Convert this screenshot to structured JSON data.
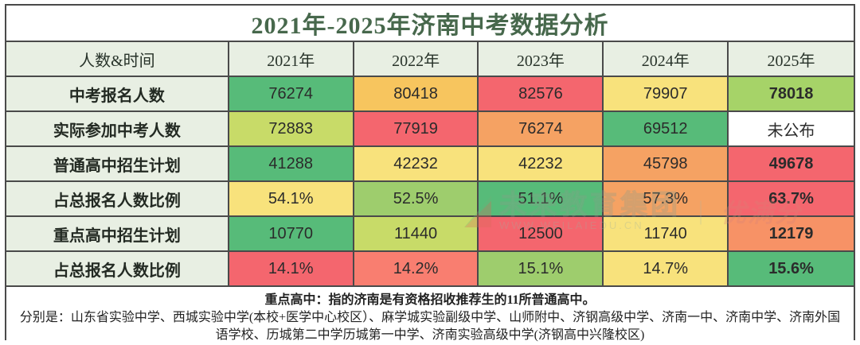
{
  "title": "2021年-2025年济南中考数据分析",
  "colors": {
    "green": "#57bb79",
    "lightGreen": "#9ecd6d",
    "yellowGreen": "#c8db68",
    "paleGreen": "#a6d368",
    "yellow": "#f8e27c",
    "amber": "#f7c55e",
    "orange": "#f5a263",
    "salmonOrange": "#f79266",
    "salmon": "#f97e70",
    "red": "#f4666e",
    "white": "#ffffff",
    "headerBg": "#e8efe3",
    "titleText": "#47684c",
    "border": "#4a4a4a"
  },
  "table": {
    "header": [
      "人数&时间",
      "2021年",
      "2022年",
      "2023年",
      "2024年",
      "2025年"
    ],
    "rows": [
      {
        "label": "中考报名人数",
        "cells": [
          {
            "v": "76274",
            "c": "green"
          },
          {
            "v": "80418",
            "c": "amber"
          },
          {
            "v": "82576",
            "c": "red"
          },
          {
            "v": "79907",
            "c": "yellow"
          },
          {
            "v": "78018",
            "c": "paleGreen",
            "b": true
          }
        ]
      },
      {
        "label": "实际参加中考人数",
        "cells": [
          {
            "v": "72883",
            "c": "yellowGreen"
          },
          {
            "v": "77919",
            "c": "red"
          },
          {
            "v": "76274",
            "c": "orange"
          },
          {
            "v": "69512",
            "c": "green"
          },
          {
            "v": "未公布",
            "c": "white",
            "cn": true
          }
        ]
      },
      {
        "label": "普通高中招生计划",
        "cells": [
          {
            "v": "41288",
            "c": "green"
          },
          {
            "v": "42232",
            "c": "yellow"
          },
          {
            "v": "42232",
            "c": "yellow"
          },
          {
            "v": "45798",
            "c": "orange"
          },
          {
            "v": "49678",
            "c": "red",
            "b": true
          }
        ]
      },
      {
        "label": "占总报名人数比例",
        "cells": [
          {
            "v": "54.1%",
            "c": "yellow"
          },
          {
            "v": "52.5%",
            "c": "lightGreen"
          },
          {
            "v": "51.1%",
            "c": "green"
          },
          {
            "v": "57.3%",
            "c": "orange"
          },
          {
            "v": "63.7%",
            "c": "red",
            "b": true
          }
        ]
      },
      {
        "label": "重点高中招生计划",
        "cells": [
          {
            "v": "10770",
            "c": "green"
          },
          {
            "v": "11440",
            "c": "yellowGreen"
          },
          {
            "v": "12500",
            "c": "red"
          },
          {
            "v": "11740",
            "c": "yellow"
          },
          {
            "v": "12179",
            "c": "salmonOrange",
            "b": true
          }
        ]
      },
      {
        "label": "占总报名人数比例",
        "cells": [
          {
            "v": "14.1%",
            "c": "red"
          },
          {
            "v": "14.2%",
            "c": "salmon"
          },
          {
            "v": "15.1%",
            "c": "lightGreen"
          },
          {
            "v": "14.7%",
            "c": "yellow"
          },
          {
            "v": "15.6%",
            "c": "green",
            "b": true
          }
        ]
      }
    ]
  },
  "notes": {
    "line1": "重点高中：指的济南是有资格招收推荐生的11所普通高中。",
    "line2": "分别是：山东省实验中学、西城实验中学(本校+医学中心校区）、麻学城实验副级中学、山师附中、济钢高级中学、济南一中、济南中学、济南外国语学校、历城第二中学历城第一中学、济南实验高级中学(济钢高中兴隆校区)"
  },
  "watermark": {
    "brand": "未来教育集团",
    "separator": "｜",
    "tagline": "优满分",
    "url": "WWW.WEILAIEDU.CN"
  },
  "chart_data": {
    "type": "table",
    "title": "2021年-2025年济南中考数据分析",
    "categories": [
      "2021年",
      "2022年",
      "2023年",
      "2024年",
      "2025年"
    ],
    "series": [
      {
        "name": "中考报名人数",
        "values": [
          76274,
          80418,
          82576,
          79907,
          78018
        ]
      },
      {
        "name": "实际参加中考人数",
        "values": [
          72883,
          77919,
          76274,
          69512,
          "未公布"
        ]
      },
      {
        "name": "普通高中招生计划",
        "values": [
          41288,
          42232,
          42232,
          45798,
          49678
        ]
      },
      {
        "name": "占总报名人数比例",
        "values": [
          "54.1%",
          "52.5%",
          "51.1%",
          "57.3%",
          "63.7%"
        ]
      },
      {
        "name": "重点高中招生计划",
        "values": [
          10770,
          11440,
          12500,
          11740,
          12179
        ]
      },
      {
        "name": "占总报名人数比例",
        "values": [
          "14.1%",
          "14.2%",
          "15.1%",
          "14.7%",
          "15.6%"
        ]
      }
    ],
    "layout_hints": {
      "heatmap_coloring": "green=better, red=worse",
      "last_column_bold": true
    }
  }
}
